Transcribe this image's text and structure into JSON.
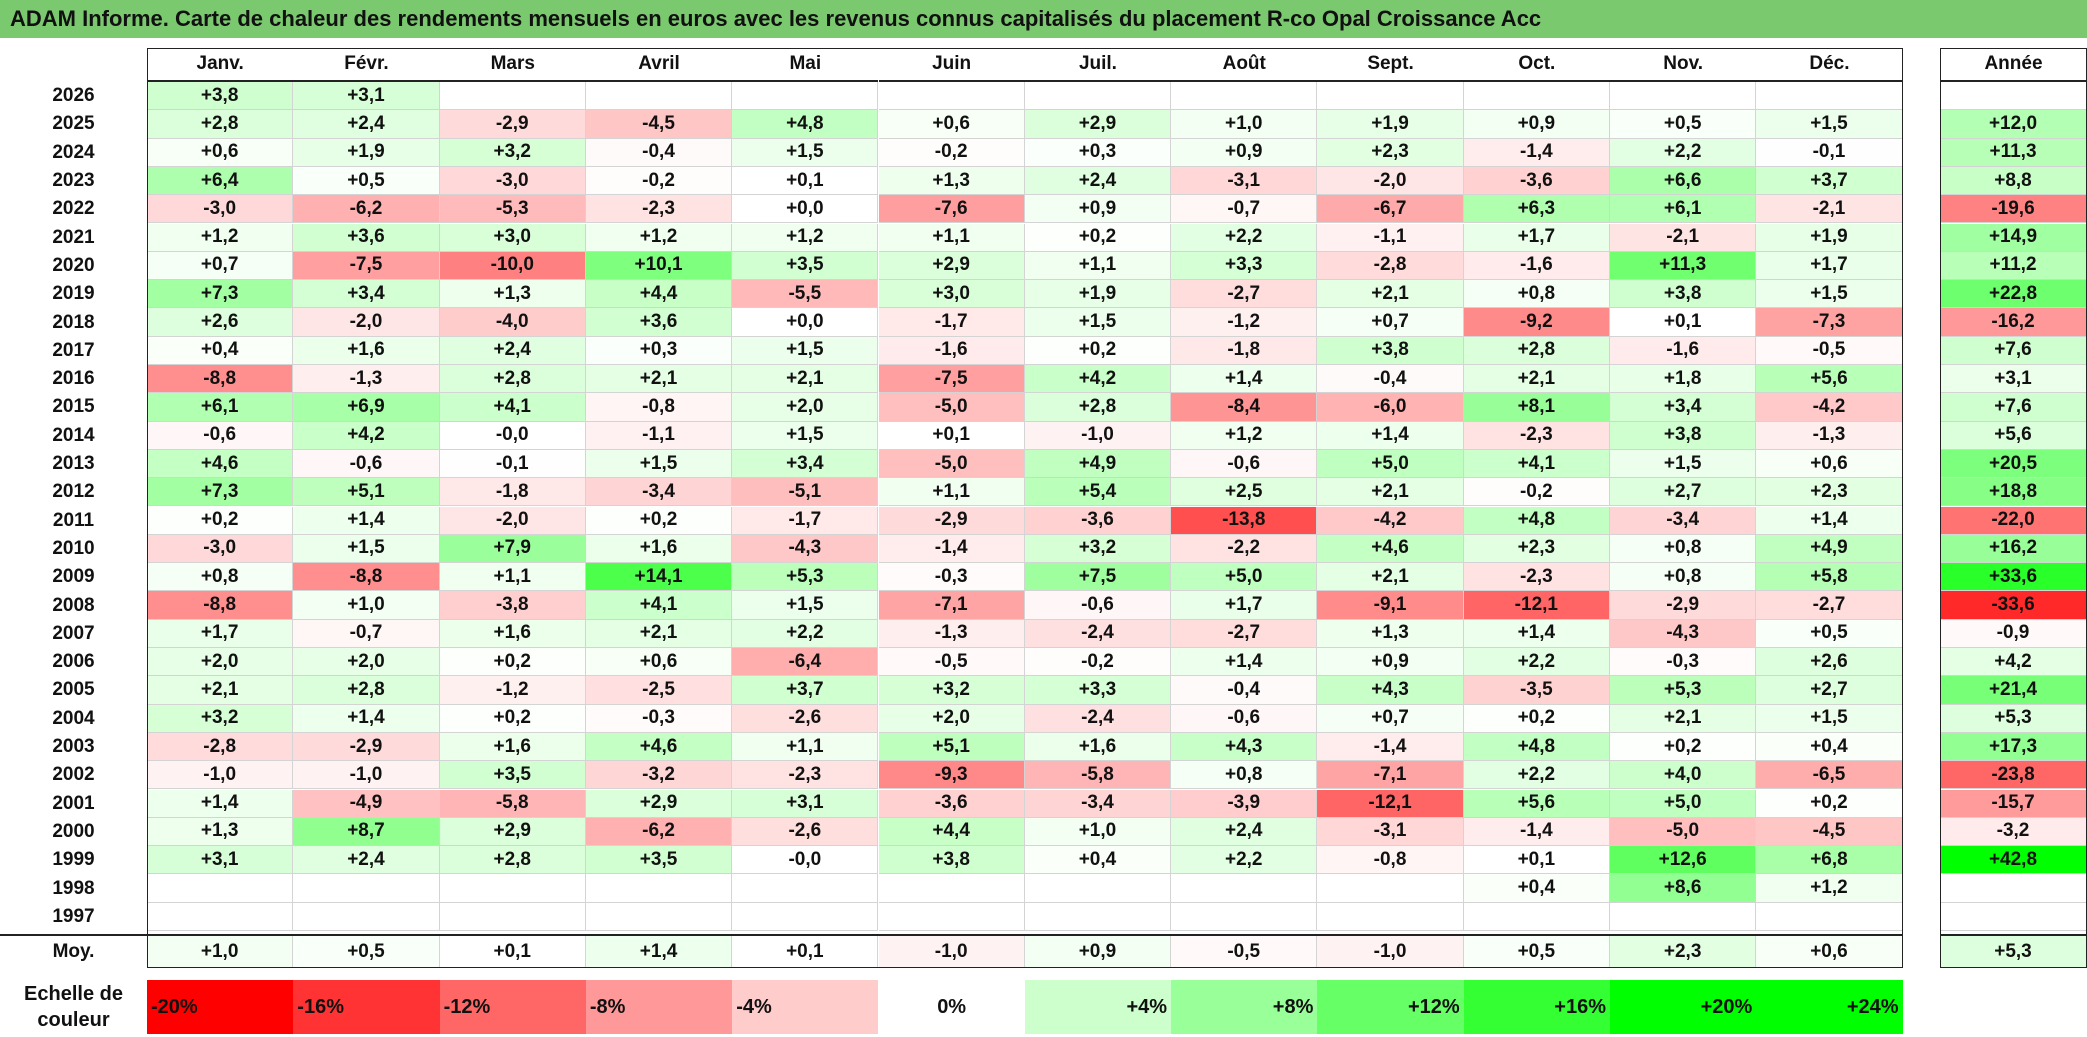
{
  "title": "ADAM Informe. Carte de chaleur des rendements mensuels en euros avec les revenus connus capitalisés du placement R-co Opal Croissance Acc",
  "chart_data": {
    "type": "heatmap",
    "months": [
      "Janv.",
      "Févr.",
      "Mars",
      "Avril",
      "Mai",
      "Juin",
      "Juil.",
      "Août",
      "Sept.",
      "Oct.",
      "Nov.",
      "Déc."
    ],
    "year_label": "Année",
    "rows": [
      {
        "year": "2026",
        "m": [
          "+3,8",
          "+3,1",
          "",
          "",
          "",
          "",
          "",
          "",
          "",
          "",
          "",
          ""
        ],
        "y": ""
      },
      {
        "year": "2025",
        "m": [
          "+2,8",
          "+2,4",
          "-2,9",
          "-4,5",
          "+4,8",
          "+0,6",
          "+2,9",
          "+1,0",
          "+1,9",
          "+0,9",
          "+0,5",
          "+1,5"
        ],
        "y": "+12,0"
      },
      {
        "year": "2024",
        "m": [
          "+0,6",
          "+1,9",
          "+3,2",
          "-0,4",
          "+1,5",
          "-0,2",
          "+0,3",
          "+0,9",
          "+2,3",
          "-1,4",
          "+2,2",
          "-0,1"
        ],
        "y": "+11,3"
      },
      {
        "year": "2023",
        "m": [
          "+6,4",
          "+0,5",
          "-3,0",
          "-0,2",
          "+0,1",
          "+1,3",
          "+2,4",
          "-3,1",
          "-2,0",
          "-3,6",
          "+6,6",
          "+3,7"
        ],
        "y": "+8,8"
      },
      {
        "year": "2022",
        "m": [
          "-3,0",
          "-6,2",
          "-5,3",
          "-2,3",
          "+0,0",
          "-7,6",
          "+0,9",
          "-0,7",
          "-6,7",
          "+6,3",
          "+6,1",
          "-2,1"
        ],
        "y": "-19,6"
      },
      {
        "year": "2021",
        "m": [
          "+1,2",
          "+3,6",
          "+3,0",
          "+1,2",
          "+1,2",
          "+1,1",
          "+0,2",
          "+2,2",
          "-1,1",
          "+1,7",
          "-2,1",
          "+1,9"
        ],
        "y": "+14,9"
      },
      {
        "year": "2020",
        "m": [
          "+0,7",
          "-7,5",
          "-10,0",
          "+10,1",
          "+3,5",
          "+2,9",
          "+1,1",
          "+3,3",
          "-2,8",
          "-1,6",
          "+11,3",
          "+1,7"
        ],
        "y": "+11,2"
      },
      {
        "year": "2019",
        "m": [
          "+7,3",
          "+3,4",
          "+1,3",
          "+4,4",
          "-5,5",
          "+3,0",
          "+1,9",
          "-2,7",
          "+2,1",
          "+0,8",
          "+3,8",
          "+1,5"
        ],
        "y": "+22,8"
      },
      {
        "year": "2018",
        "m": [
          "+2,6",
          "-2,0",
          "-4,0",
          "+3,6",
          "+0,0",
          "-1,7",
          "+1,5",
          "-1,2",
          "+0,7",
          "-9,2",
          "+0,1",
          "-7,3"
        ],
        "y": "-16,2"
      },
      {
        "year": "2017",
        "m": [
          "+0,4",
          "+1,6",
          "+2,4",
          "+0,3",
          "+1,5",
          "-1,6",
          "+0,2",
          "-1,8",
          "+3,8",
          "+2,8",
          "-1,6",
          "-0,5"
        ],
        "y": "+7,6"
      },
      {
        "year": "2016",
        "m": [
          "-8,8",
          "-1,3",
          "+2,8",
          "+2,1",
          "+2,1",
          "-7,5",
          "+4,2",
          "+1,4",
          "-0,4",
          "+2,1",
          "+1,8",
          "+5,6"
        ],
        "y": "+3,1"
      },
      {
        "year": "2015",
        "m": [
          "+6,1",
          "+6,9",
          "+4,1",
          "-0,8",
          "+2,0",
          "-5,0",
          "+2,8",
          "-8,4",
          "-6,0",
          "+8,1",
          "+3,4",
          "-4,2"
        ],
        "y": "+7,6"
      },
      {
        "year": "2014",
        "m": [
          "-0,6",
          "+4,2",
          "-0,0",
          "-1,1",
          "+1,5",
          "+0,1",
          "-1,0",
          "+1,2",
          "+1,4",
          "-2,3",
          "+3,8",
          "-1,3"
        ],
        "y": "+5,6"
      },
      {
        "year": "2013",
        "m": [
          "+4,6",
          "-0,6",
          "-0,1",
          "+1,5",
          "+3,4",
          "-5,0",
          "+4,9",
          "-0,6",
          "+5,0",
          "+4,1",
          "+1,5",
          "+0,6"
        ],
        "y": "+20,5"
      },
      {
        "year": "2012",
        "m": [
          "+7,3",
          "+5,1",
          "-1,8",
          "-3,4",
          "-5,1",
          "+1,1",
          "+5,4",
          "+2,5",
          "+2,1",
          "-0,2",
          "+2,7",
          "+2,3"
        ],
        "y": "+18,8"
      },
      {
        "year": "2011",
        "m": [
          "+0,2",
          "+1,4",
          "-2,0",
          "+0,2",
          "-1,7",
          "-2,9",
          "-3,6",
          "-13,8",
          "-4,2",
          "+4,8",
          "-3,4",
          "+1,4"
        ],
        "y": "-22,0"
      },
      {
        "year": "2010",
        "m": [
          "-3,0",
          "+1,5",
          "+7,9",
          "+1,6",
          "-4,3",
          "-1,4",
          "+3,2",
          "-2,2",
          "+4,6",
          "+2,3",
          "+0,8",
          "+4,9"
        ],
        "y": "+16,2"
      },
      {
        "year": "2009",
        "m": [
          "+0,8",
          "-8,8",
          "+1,1",
          "+14,1",
          "+5,3",
          "-0,3",
          "+7,5",
          "+5,0",
          "+2,1",
          "-2,3",
          "+0,8",
          "+5,8"
        ],
        "y": "+33,6"
      },
      {
        "year": "2008",
        "m": [
          "-8,8",
          "+1,0",
          "-3,8",
          "+4,1",
          "+1,5",
          "-7,1",
          "-0,6",
          "+1,7",
          "-9,1",
          "-12,1",
          "-2,9",
          "-2,7"
        ],
        "y": "-33,6"
      },
      {
        "year": "2007",
        "m": [
          "+1,7",
          "-0,7",
          "+1,6",
          "+2,1",
          "+2,2",
          "-1,3",
          "-2,4",
          "-2,7",
          "+1,3",
          "+1,4",
          "-4,3",
          "+0,5"
        ],
        "y": "-0,9"
      },
      {
        "year": "2006",
        "m": [
          "+2,0",
          "+2,0",
          "+0,2",
          "+0,6",
          "-6,4",
          "-0,5",
          "-0,2",
          "+1,4",
          "+0,9",
          "+2,2",
          "-0,3",
          "+2,6"
        ],
        "y": "+4,2"
      },
      {
        "year": "2005",
        "m": [
          "+2,1",
          "+2,8",
          "-1,2",
          "-2,5",
          "+3,7",
          "+3,2",
          "+3,3",
          "-0,4",
          "+4,3",
          "-3,5",
          "+5,3",
          "+2,7"
        ],
        "y": "+21,4"
      },
      {
        "year": "2004",
        "m": [
          "+3,2",
          "+1,4",
          "+0,2",
          "-0,3",
          "-2,6",
          "+2,0",
          "-2,4",
          "-0,6",
          "+0,7",
          "+0,2",
          "+2,1",
          "+1,5"
        ],
        "y": "+5,3"
      },
      {
        "year": "2003",
        "m": [
          "-2,8",
          "-2,9",
          "+1,6",
          "+4,6",
          "+1,1",
          "+5,1",
          "+1,6",
          "+4,3",
          "-1,4",
          "+4,8",
          "+0,2",
          "+0,4"
        ],
        "y": "+17,3"
      },
      {
        "year": "2002",
        "m": [
          "-1,0",
          "-1,0",
          "+3,5",
          "-3,2",
          "-2,3",
          "-9,3",
          "-5,8",
          "+0,8",
          "-7,1",
          "+2,2",
          "+4,0",
          "-6,5"
        ],
        "y": "-23,8"
      },
      {
        "year": "2001",
        "m": [
          "+1,4",
          "-4,9",
          "-5,8",
          "+2,9",
          "+3,1",
          "-3,6",
          "-3,4",
          "-3,9",
          "-12,1",
          "+5,6",
          "+5,0",
          "+0,2"
        ],
        "y": "-15,7"
      },
      {
        "year": "2000",
        "m": [
          "+1,3",
          "+8,7",
          "+2,9",
          "-6,2",
          "-2,6",
          "+4,4",
          "+1,0",
          "+2,4",
          "-3,1",
          "-1,4",
          "-5,0",
          "-4,5"
        ],
        "y": "-3,2"
      },
      {
        "year": "1999",
        "m": [
          "+3,1",
          "+2,4",
          "+2,8",
          "+3,5",
          "-0,0",
          "+3,8",
          "+0,4",
          "+2,2",
          "-0,8",
          "+0,1",
          "+12,6",
          "+6,8"
        ],
        "y": "+42,8"
      },
      {
        "year": "1998",
        "m": [
          "",
          "",
          "",
          "",
          "",
          "",
          "",
          "",
          "",
          "+0,4",
          "+8,6",
          "+1,2"
        ],
        "y": ""
      },
      {
        "year": "1997",
        "m": [
          "",
          "",
          "",
          "",
          "",
          "",
          "",
          "",
          "",
          "",
          "",
          ""
        ],
        "y": ""
      }
    ],
    "average": {
      "label": "Moy.",
      "m": [
        "+1,0",
        "+0,5",
        "+0,1",
        "+1,4",
        "+0,1",
        "-1,0",
        "+0,9",
        "-0,5",
        "-1,0",
        "+0,5",
        "+2,3",
        "+0,6"
      ],
      "y": "+5,3"
    },
    "legend": {
      "label": "Echelle de couleur",
      "steps": [
        "-20%",
        "-16%",
        "-12%",
        "-8%",
        "-4%",
        "0%",
        "+4%",
        "+8%",
        "+12%",
        "+16%",
        "+20%",
        "+24%"
      ],
      "values": [
        -20,
        -16,
        -12,
        -8,
        -4,
        0,
        4,
        8,
        12,
        16,
        20,
        24
      ]
    },
    "colors": {
      "negative": "#ff0000",
      "positive": "#00ff00",
      "neutral": "#ffffff",
      "title_bg": "#7bc96f"
    }
  }
}
